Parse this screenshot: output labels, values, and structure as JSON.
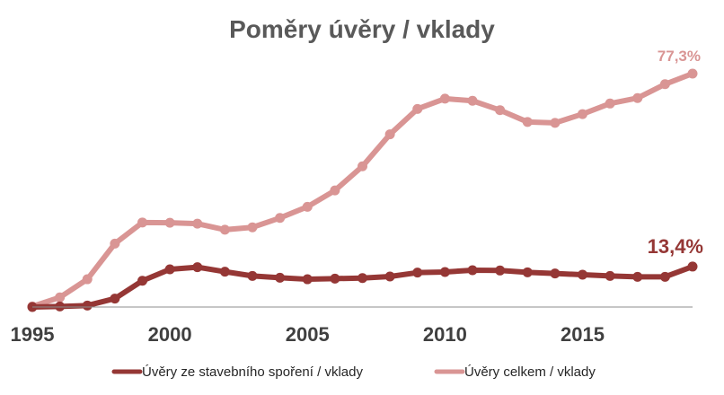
{
  "chart_data": {
    "type": "line",
    "title": "Poměry úvěry / vklady",
    "xlabel": "",
    "ylabel": "",
    "x": [
      1995,
      1996,
      1997,
      1998,
      1999,
      2000,
      2001,
      2002,
      2003,
      2004,
      2005,
      2006,
      2007,
      2008,
      2009,
      2010,
      2011,
      2012,
      2013,
      2014,
      2015,
      2016,
      2017,
      2018,
      2019
    ],
    "x_tick_labels": [
      "1995",
      "2000",
      "2005",
      "2010",
      "2015"
    ],
    "ylim": [
      0,
      80
    ],
    "grid": false,
    "legend_position": "bottom",
    "series": [
      {
        "name": "Úvěry ze stavebního spoření / vklady",
        "color": "#953735",
        "values": [
          0.0,
          0.2,
          0.5,
          2.8,
          8.7,
          12.5,
          13.2,
          11.7,
          10.3,
          9.7,
          9.2,
          9.4,
          9.6,
          10.1,
          11.4,
          11.6,
          12.2,
          12.1,
          11.5,
          11.1,
          10.7,
          10.3,
          10.0,
          10.0,
          13.4
        ],
        "end_label": "13,4%"
      },
      {
        "name": "Úvěry celkem / vklady",
        "color": "#D99594",
        "values": [
          0.2,
          3.2,
          9.2,
          21.0,
          28.0,
          27.9,
          27.6,
          25.6,
          26.4,
          29.5,
          33.2,
          38.6,
          46.6,
          57.2,
          65.6,
          69.0,
          68.3,
          65.2,
          61.3,
          61.0,
          63.9,
          67.4,
          69.2,
          73.8,
          77.3
        ],
        "end_label": "77,3%"
      }
    ]
  }
}
